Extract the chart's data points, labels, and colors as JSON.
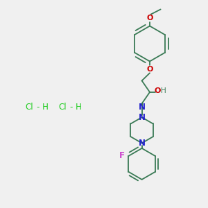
{
  "bg_color": "#f0f0f0",
  "bond_color": "#3a7a55",
  "lw": 1.3,
  "N_color": "#2222cc",
  "O_color": "#cc0000",
  "F_color": "#cc44cc",
  "HCl_color": "#22cc22",
  "figsize": [
    3.0,
    3.0
  ],
  "dpi": 100,
  "xlim": [
    0,
    10
  ],
  "ylim": [
    0,
    10
  ]
}
